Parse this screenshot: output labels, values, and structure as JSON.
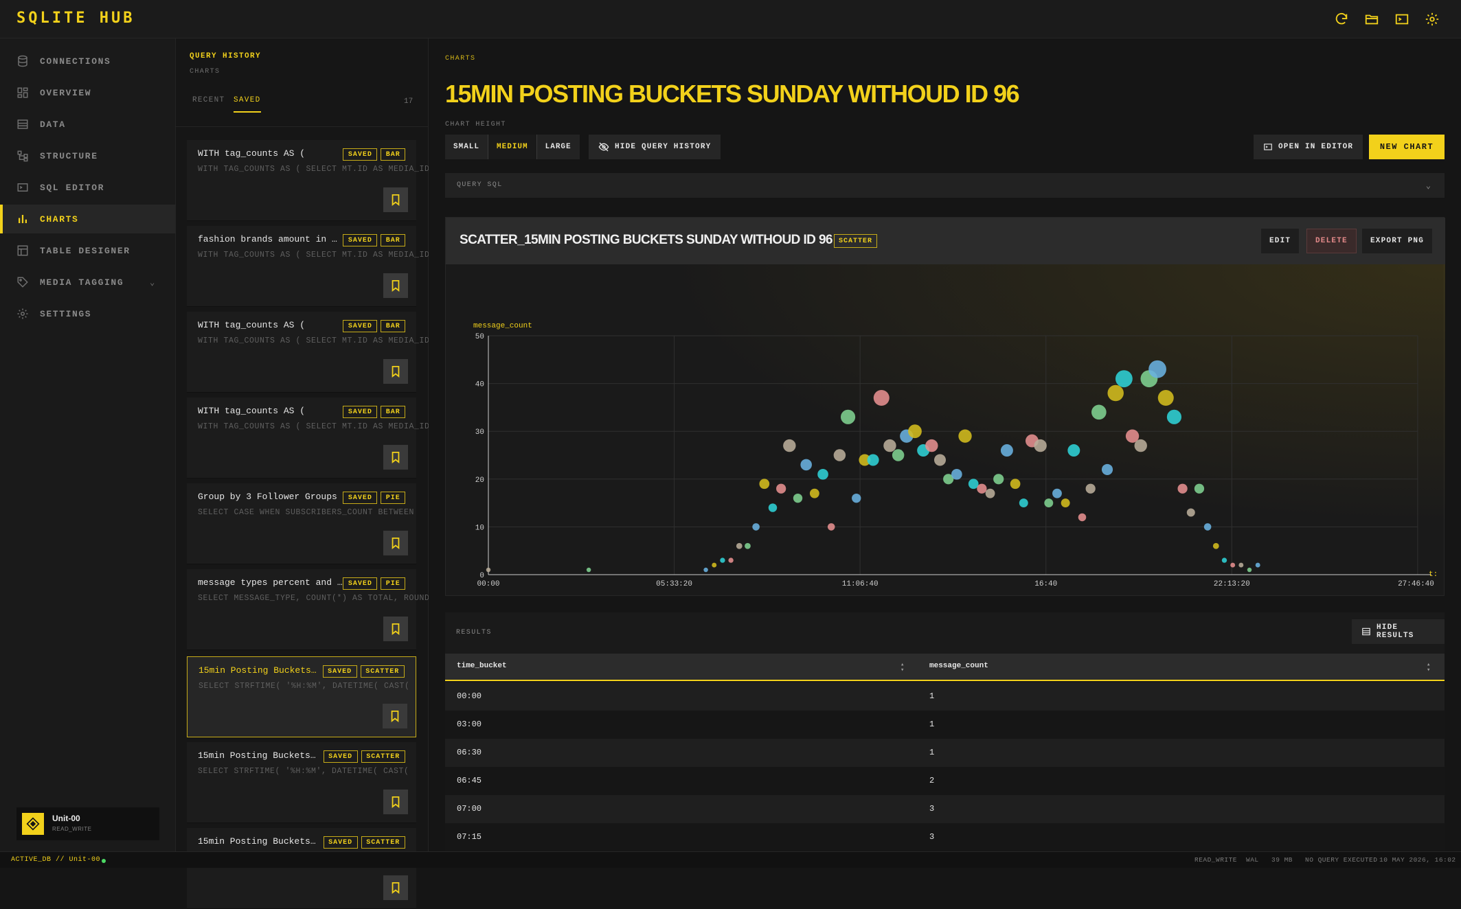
{
  "app": {
    "brand": "SQLITE HUB",
    "accent_color": "#f2d11b",
    "top_icons": [
      "refresh-icon",
      "folder-open-icon",
      "terminal-icon",
      "gear-icon"
    ]
  },
  "sidebar": {
    "items": [
      {
        "label": "CONNECTIONS",
        "icon": "database-icon"
      },
      {
        "label": "OVERVIEW",
        "icon": "grid-icon"
      },
      {
        "label": "DATA",
        "icon": "table-icon"
      },
      {
        "label": "STRUCTURE",
        "icon": "structure-icon"
      },
      {
        "label": "SQL EDITOR",
        "icon": "terminal-icon"
      },
      {
        "label": "CHARTS",
        "icon": "bar-chart-icon",
        "active": true
      },
      {
        "label": "TABLE DESIGNER",
        "icon": "layout-icon"
      },
      {
        "label": "MEDIA TAGGING",
        "icon": "tag-icon"
      },
      {
        "label": "SETTINGS",
        "icon": "gear-icon"
      }
    ],
    "user": {
      "name": "Unit-00",
      "role": "READ_WRITE"
    }
  },
  "history": {
    "title": "QUERY HISTORY",
    "subtitle": "CHARTS",
    "tabs": [
      "RECENT",
      "SAVED"
    ],
    "active_tab": "SAVED",
    "count": "17",
    "items": [
      {
        "title": "WITH tag_counts AS (",
        "sql": "WITH TAG_COUNTS AS ( SELECT MT.ID AS MEDIA_ID",
        "badges": [
          "SAVED",
          "BAR"
        ]
      },
      {
        "title": "fashion brands amount in …",
        "sql": "WITH TAG_COUNTS AS ( SELECT MT.ID AS MEDIA_ID",
        "badges": [
          "SAVED",
          "BAR"
        ]
      },
      {
        "title": "WITH tag_counts AS (",
        "sql": "WITH TAG_COUNTS AS ( SELECT MT.ID AS MEDIA_ID",
        "badges": [
          "SAVED",
          "BAR"
        ]
      },
      {
        "title": "WITH tag_counts AS (",
        "sql": "WITH TAG_COUNTS AS ( SELECT MT.ID AS MEDIA_ID",
        "badges": [
          "SAVED",
          "BAR"
        ]
      },
      {
        "title": "Group by 3 Follower Groups",
        "sql": "SELECT CASE WHEN SUBSCRIBERS_COUNT BETWEEN",
        "badges": [
          "SAVED",
          "PIE"
        ]
      },
      {
        "title": "message types percent and …",
        "sql": "SELECT MESSAGE_TYPE, COUNT(*) AS TOTAL, ROUND",
        "badges": [
          "SAVED",
          "PIE"
        ]
      },
      {
        "title": "15min Posting Buckets…",
        "sql": "SELECT STRFTIME( '%H:%M', DATETIME( CAST(",
        "badges": [
          "SAVED",
          "SCATTER"
        ],
        "selected": true
      },
      {
        "title": "15min Posting Buckets…",
        "sql": "SELECT STRFTIME( '%H:%M', DATETIME( CAST(",
        "badges": [
          "SAVED",
          "SCATTER"
        ]
      },
      {
        "title": "15min Posting Buckets…",
        "sql": "",
        "badges": [
          "SAVED",
          "SCATTER"
        ]
      }
    ]
  },
  "main": {
    "breadcrumb": "CHARTS",
    "title": "15MIN POSTING BUCKETS SUNDAY WITHOUD ID 96",
    "chart_height_label": "CHART HEIGHT",
    "sizes": [
      "SMALL",
      "MEDIUM",
      "LARGE"
    ],
    "active_size": "MEDIUM",
    "hide_history": "HIDE QUERY HISTORY",
    "open_editor": "OPEN IN EDITOR",
    "new_chart": "NEW CHART",
    "query_sql": "QUERY SQL",
    "chart": {
      "title": "SCATTER_15MIN POSTING BUCKETS SUNDAY WITHOUD ID 96",
      "type_badge": "SCATTER",
      "edit": "EDIT",
      "delete": "DELETE",
      "export": "EXPORT PNG"
    },
    "results": {
      "label": "RESULTS",
      "hide": "HIDE RESULTS",
      "columns": [
        "time_bucket",
        "message_count"
      ],
      "rows": [
        [
          "00:00",
          "1"
        ],
        [
          "03:00",
          "1"
        ],
        [
          "06:30",
          "1"
        ],
        [
          "06:45",
          "2"
        ],
        [
          "07:00",
          "3"
        ],
        [
          "07:15",
          "3"
        ]
      ]
    }
  },
  "chart_data": {
    "type": "scatter",
    "xlabel": "t:",
    "ylabel": "message_count",
    "x_ticks": [
      "00:00",
      "05:33:20",
      "11:06:40",
      "16:40",
      "22:13:20",
      "27:46:40"
    ],
    "y_ticks": [
      0,
      10,
      20,
      30,
      40,
      50
    ],
    "xlim_hours": [
      0,
      27.78
    ],
    "ylim": [
      0,
      50
    ],
    "palette": [
      "#d4bd1e",
      "#2fd1d6",
      "#e69090",
      "#b9ad9a",
      "#7fd191",
      "#6ab2e0"
    ],
    "points": [
      {
        "x": "00:00",
        "y": 1
      },
      {
        "x": "03:00",
        "y": 1
      },
      {
        "x": "06:30",
        "y": 1
      },
      {
        "x": "06:45",
        "y": 2
      },
      {
        "x": "07:00",
        "y": 3
      },
      {
        "x": "07:15",
        "y": 3
      },
      {
        "x": "07:30",
        "y": 6
      },
      {
        "x": "07:45",
        "y": 6
      },
      {
        "x": "08:00",
        "y": 10
      },
      {
        "x": "08:15",
        "y": 19
      },
      {
        "x": "08:30",
        "y": 14
      },
      {
        "x": "08:45",
        "y": 18
      },
      {
        "x": "09:00",
        "y": 27
      },
      {
        "x": "09:15",
        "y": 16
      },
      {
        "x": "09:30",
        "y": 23
      },
      {
        "x": "09:45",
        "y": 17
      },
      {
        "x": "10:00",
        "y": 21
      },
      {
        "x": "10:15",
        "y": 10
      },
      {
        "x": "10:30",
        "y": 25
      },
      {
        "x": "10:45",
        "y": 33
      },
      {
        "x": "11:00",
        "y": 16
      },
      {
        "x": "11:15",
        "y": 24
      },
      {
        "x": "11:30",
        "y": 24
      },
      {
        "x": "11:45",
        "y": 37
      },
      {
        "x": "12:00",
        "y": 27
      },
      {
        "x": "12:15",
        "y": 25
      },
      {
        "x": "12:30",
        "y": 29
      },
      {
        "x": "12:45",
        "y": 30
      },
      {
        "x": "13:00",
        "y": 26
      },
      {
        "x": "13:15",
        "y": 27
      },
      {
        "x": "13:30",
        "y": 24
      },
      {
        "x": "13:45",
        "y": 20
      },
      {
        "x": "14:00",
        "y": 21
      },
      {
        "x": "14:15",
        "y": 29
      },
      {
        "x": "14:30",
        "y": 19
      },
      {
        "x": "14:45",
        "y": 18
      },
      {
        "x": "15:00",
        "y": 17
      },
      {
        "x": "15:15",
        "y": 20
      },
      {
        "x": "15:30",
        "y": 26
      },
      {
        "x": "15:45",
        "y": 19
      },
      {
        "x": "16:00",
        "y": 15
      },
      {
        "x": "16:15",
        "y": 28
      },
      {
        "x": "16:30",
        "y": 27
      },
      {
        "x": "16:45",
        "y": 15
      },
      {
        "x": "17:00",
        "y": 17
      },
      {
        "x": "17:15",
        "y": 15
      },
      {
        "x": "17:30",
        "y": 26
      },
      {
        "x": "17:45",
        "y": 12
      },
      {
        "x": "18:00",
        "y": 18
      },
      {
        "x": "18:15",
        "y": 34
      },
      {
        "x": "18:30",
        "y": 22
      },
      {
        "x": "18:45",
        "y": 38
      },
      {
        "x": "19:00",
        "y": 41
      },
      {
        "x": "19:15",
        "y": 29
      },
      {
        "x": "19:30",
        "y": 27
      },
      {
        "x": "19:45",
        "y": 41
      },
      {
        "x": "20:00",
        "y": 43
      },
      {
        "x": "20:15",
        "y": 37
      },
      {
        "x": "20:30",
        "y": 33
      },
      {
        "x": "20:45",
        "y": 18
      },
      {
        "x": "21:00",
        "y": 13
      },
      {
        "x": "21:15",
        "y": 18
      },
      {
        "x": "21:30",
        "y": 10
      },
      {
        "x": "21:45",
        "y": 6
      },
      {
        "x": "22:00",
        "y": 3
      },
      {
        "x": "22:15",
        "y": 2
      },
      {
        "x": "22:30",
        "y": 2
      },
      {
        "x": "22:45",
        "y": 1
      },
      {
        "x": "23:00",
        "y": 2
      }
    ]
  },
  "statusbar": {
    "db": "ACTIVE_DB // Unit-00",
    "mode": "READ_WRITE",
    "journal": "WAL",
    "size": "39 MB",
    "query_state": "NO QUERY EXECUTED",
    "timestamp": "10 MAY 2026, 16:02"
  }
}
